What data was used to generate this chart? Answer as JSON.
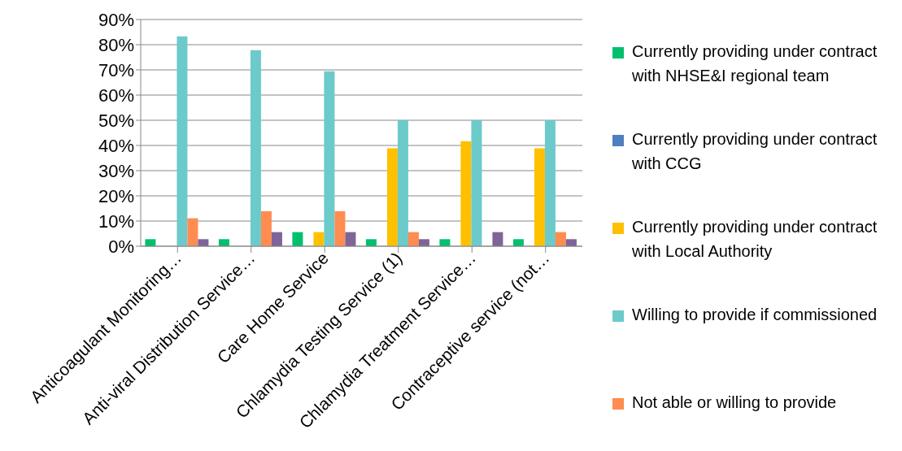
{
  "chart_data": {
    "type": "bar",
    "categories": [
      "Anticoagulant Monitoring…",
      "Anti-viral Distribution Service…",
      "Care Home Service",
      "Chlamydia Testing Service (1)",
      "Chlamydia Treatment Service…",
      "Contraceptive service (not…"
    ],
    "series": [
      {
        "name": "Currently providing under contract with NHSE&I regional team",
        "color": "#00c06f",
        "values": [
          2.8,
          2.8,
          5.6,
          2.8,
          2.8,
          2.8
        ]
      },
      {
        "name": "Currently providing under contract with CCG",
        "color": "#4f7fc0",
        "values": [
          0,
          0,
          0,
          0,
          0,
          0
        ]
      },
      {
        "name": "Currently providing under contract with Local Authority",
        "color": "#ffc000",
        "values": [
          0,
          0,
          5.6,
          38.9,
          41.7,
          38.9
        ]
      },
      {
        "name": "Willing to provide if commissioned",
        "color": "#6ccacb",
        "values": [
          83.3,
          77.8,
          69.4,
          50,
          50,
          50
        ]
      },
      {
        "name": "Not able or willing to provide",
        "color": "#ff8c50",
        "values": [
          11.1,
          13.9,
          13.9,
          5.6,
          0,
          5.6
        ]
      },
      {
        "color": "#7f6499",
        "values": [
          2.8,
          5.6,
          5.6,
          2.8,
          5.6,
          2.8
        ]
      }
    ],
    "ylim": [
      0,
      90
    ],
    "yticks": [
      {
        "value": 0,
        "label": "0%"
      },
      {
        "value": 10,
        "label": "10%"
      },
      {
        "value": 20,
        "label": "20%"
      },
      {
        "value": 30,
        "label": "30%"
      },
      {
        "value": 40,
        "label": "40%"
      },
      {
        "value": 50,
        "label": "50%"
      },
      {
        "value": 60,
        "label": "60%"
      },
      {
        "value": 70,
        "label": "70%"
      },
      {
        "value": 80,
        "label": "80%"
      },
      {
        "value": 90,
        "label": "90%"
      }
    ],
    "grid": "y",
    "legend": "right"
  }
}
